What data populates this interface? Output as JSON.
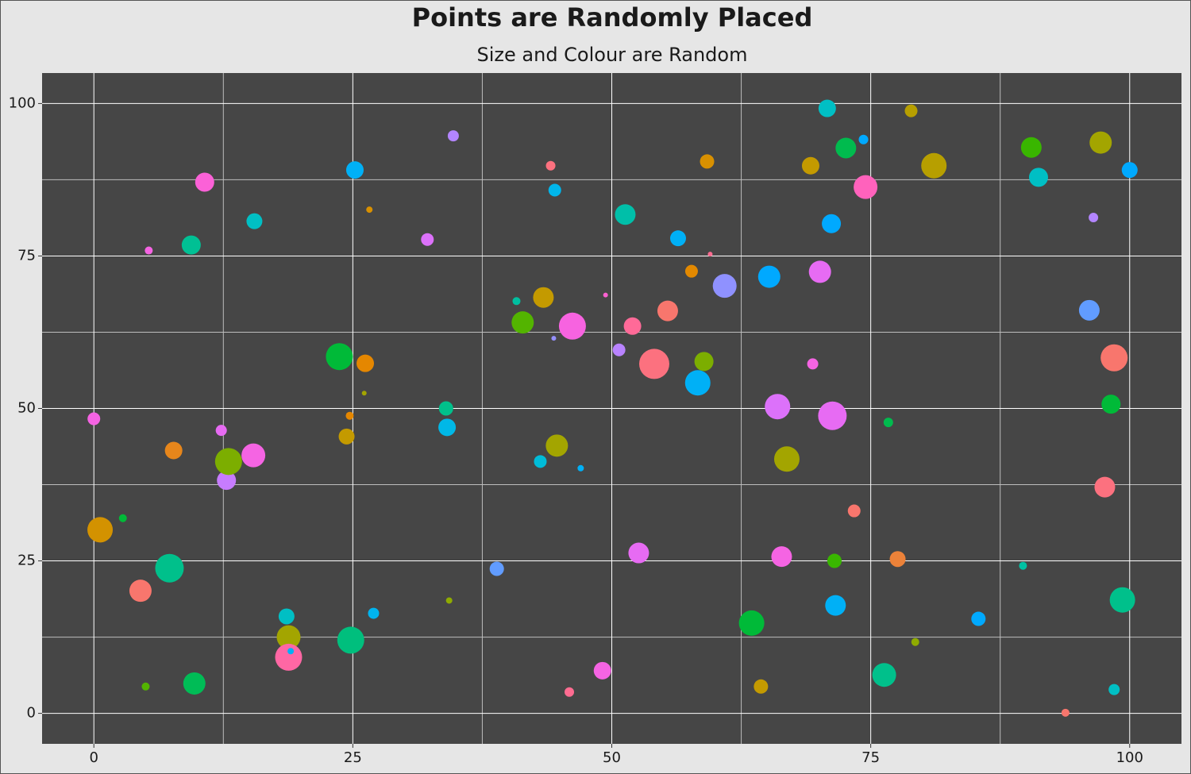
{
  "chart_data": {
    "type": "scatter",
    "title": "Points are Randomly Placed",
    "subtitle": "Size and Colour are Random",
    "xlim": [
      -5,
      105
    ],
    "ylim": [
      -5,
      105
    ],
    "xticks": [
      0,
      25,
      50,
      75,
      100
    ],
    "yticks": [
      0,
      25,
      50,
      75,
      100
    ],
    "minor_xticks": [
      12.5,
      37.5,
      62.5,
      87.5
    ],
    "minor_yticks": [
      12.5,
      37.5,
      62.5,
      87.5
    ],
    "grid": true,
    "x": [
      0,
      0.6,
      2.8,
      4.5,
      5.0,
      5.3,
      7.3,
      7.7,
      9.4,
      9.7,
      10.7,
      12.3,
      12.8,
      13.0,
      15.4,
      15.5,
      18.6,
      18.8,
      18.8,
      19.0,
      23.7,
      24.4,
      24.7,
      24.8,
      25.2,
      26.2,
      26.6,
      26.1,
      27.0,
      32.2,
      34.0,
      34.1,
      34.3,
      34.7,
      38.9,
      40.8,
      41.4,
      43.1,
      43.4,
      44.1,
      44.4,
      44.5,
      44.7,
      45.9,
      46.2,
      47.0,
      49.1,
      49.4,
      50.7,
      51.3,
      52.0,
      52.6,
      54.1,
      55.4,
      56.4,
      57.7,
      58.3,
      58.9,
      59.2,
      59.5,
      60.9,
      63.5,
      64.4,
      65.2,
      66.0,
      66.4,
      66.9,
      69.2,
      69.4,
      70.1,
      70.8,
      71.2,
      71.3,
      71.5,
      71.6,
      72.6,
      73.4,
      74.3,
      74.5,
      76.3,
      76.7,
      77.6,
      78.9,
      79.3,
      81.1,
      85.4,
      89.7,
      90.5,
      91.2,
      93.8,
      96.1,
      96.5,
      97.2,
      97.6,
      98.2,
      98.5,
      98.5,
      99.3,
      100.0
    ],
    "values": [
      48.3,
      30.1,
      32.0,
      20.1,
      4.4,
      75.9,
      23.8,
      43.1,
      76.8,
      4.9,
      87.1,
      46.4,
      38.2,
      41.3,
      42.3,
      80.7,
      15.9,
      12.5,
      9.2,
      10.2,
      58.5,
      45.4,
      48.8,
      12.0,
      89.1,
      57.4,
      82.6,
      52.5,
      16.4,
      77.7,
      50.0,
      46.9,
      18.5,
      94.7,
      23.7,
      67.6,
      64.1,
      41.3,
      68.2,
      89.8,
      61.5,
      85.8,
      43.9,
      3.5,
      63.5,
      40.2,
      7.0,
      68.6,
      59.6,
      81.8,
      63.5,
      26.3,
      57.3,
      66.0,
      77.9,
      72.5,
      54.2,
      57.7,
      90.5,
      75.3,
      70.1,
      14.8,
      4.4,
      71.6,
      50.3,
      25.7,
      41.7,
      89.8,
      57.3,
      72.4,
      99.2,
      80.3,
      48.8,
      25.0,
      17.7,
      92.7,
      33.2,
      94.1,
      86.3,
      6.3,
      47.7,
      25.3,
      98.8,
      11.7,
      89.8,
      15.5,
      24.2,
      92.8,
      87.9,
      0.1,
      66.1,
      81.3,
      93.6,
      37.1,
      50.7,
      58.3,
      3.9,
      18.6,
      89.1
    ],
    "sizes": [
      8,
      16,
      5,
      14,
      5,
      5,
      18,
      11,
      12,
      14,
      12,
      7,
      12,
      17,
      15,
      10,
      10,
      15,
      17,
      4,
      17,
      10,
      5,
      17,
      11,
      11,
      4,
      3,
      7,
      8,
      9,
      11,
      4,
      7,
      9,
      5,
      14,
      8,
      13,
      6,
      3,
      8,
      14,
      6,
      17,
      4,
      11,
      3,
      8,
      13,
      11,
      13,
      19,
      13,
      10,
      8,
      16,
      12,
      9,
      3,
      15,
      16,
      9,
      14,
      16,
      13,
      16,
      11,
      7,
      14,
      11,
      12,
      18,
      9,
      13,
      13,
      8,
      6,
      15,
      15,
      6,
      10,
      8,
      5,
      16,
      9,
      5,
      13,
      12,
      5,
      13,
      6,
      14,
      13,
      12,
      17,
      7,
      16,
      10
    ],
    "colors": [
      "#f563e3",
      "#d39200",
      "#00ba38",
      "#f8766d",
      "#53b400",
      "#f564e3",
      "#00c08b",
      "#e7861b",
      "#00c094",
      "#00bc56",
      "#fb61d7",
      "#e76bf3",
      "#c77cff",
      "#7cae00",
      "#f564e3",
      "#00bfc4",
      "#00bfc4",
      "#a3a500",
      "#ff67a4",
      "#00b0f6",
      "#00ba38",
      "#c49a00",
      "#e58700",
      "#00bf7d",
      "#00b0f6",
      "#e58700",
      "#d89000",
      "#a3a500",
      "#00b4ef",
      "#dc71fa",
      "#00c08b",
      "#00b8e7",
      "#8fab00",
      "#b385ff",
      "#619cff",
      "#00bfa0",
      "#53b400",
      "#00bcd8",
      "#c49a00",
      "#fc717f",
      "#9590ff",
      "#00b6eb",
      "#a3a500",
      "#ff6c91",
      "#f763e0",
      "#00b0f6",
      "#f564e3",
      "#fd61d1",
      "#b983ff",
      "#00bfa9",
      "#ff6a98",
      "#e76bf3",
      "#fc717f",
      "#f8766d",
      "#00b0f6",
      "#e38900",
      "#00b0f6",
      "#7cae00",
      "#d89000",
      "#ff6c91",
      "#8f91ff",
      "#00ba38",
      "#c49a00",
      "#00a9ff",
      "#dc71fa",
      "#f564e3",
      "#a3a500",
      "#c49a00",
      "#f564e3",
      "#e76bf3",
      "#00bfc4",
      "#00a9ff",
      "#e76bf3",
      "#39b600",
      "#00b0f6",
      "#00bb4e",
      "#f8766d",
      "#00a9ff",
      "#ff62bc",
      "#00c08b",
      "#00bb4e",
      "#ec8239",
      "#b79f00",
      "#8fab00",
      "#b79f00",
      "#00a9ff",
      "#00c1a3",
      "#39b600",
      "#00bfc4",
      "#f8766d",
      "#619cff",
      "#b385ff",
      "#a3a500",
      "#fc717f",
      "#00ba38",
      "#f8766d",
      "#00bfc4",
      "#00c08b",
      "#00a9ff"
    ]
  }
}
